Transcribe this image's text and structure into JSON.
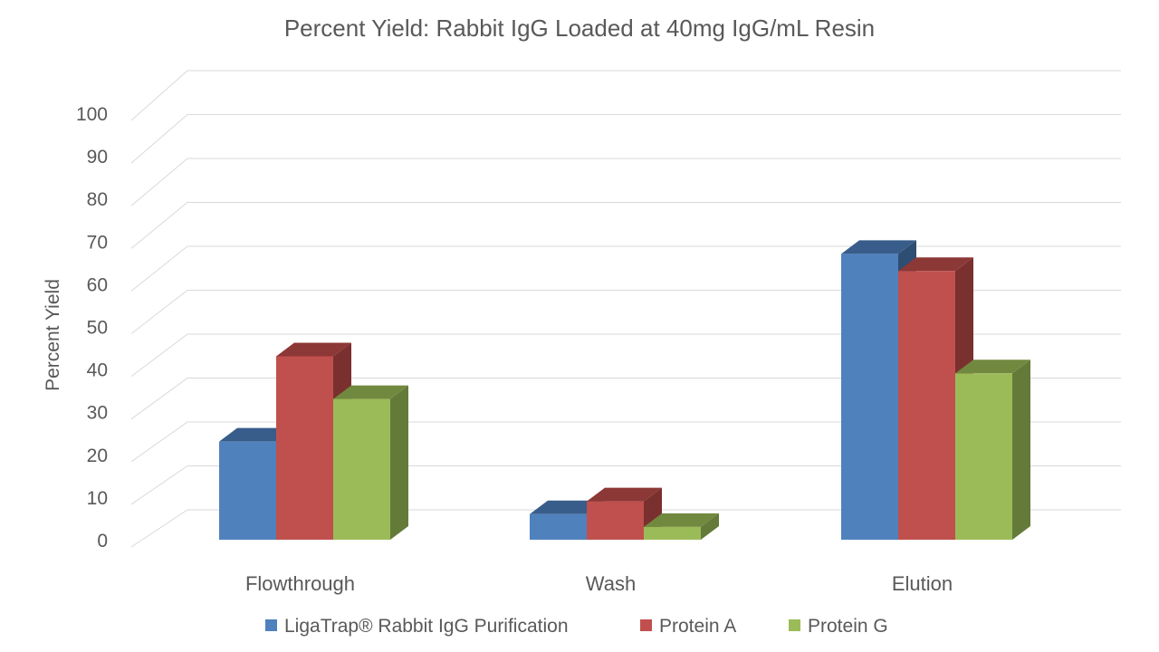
{
  "chart_data": {
    "type": "bar",
    "style": "3d-clustered-column",
    "title": "Percent Yield: Rabbit IgG Loaded at 40mg IgG/mL Resin",
    "xlabel": "",
    "ylabel": "Percent Yield",
    "ylim": [
      0,
      100
    ],
    "yticks": [
      0,
      10,
      20,
      30,
      40,
      50,
      60,
      70,
      80,
      90,
      100
    ],
    "categories": [
      "Flowthrough",
      "Wash",
      "Elution"
    ],
    "series": [
      {
        "name": "LigaTrap® Rabbit IgG Purification",
        "values": [
          23,
          6,
          67
        ],
        "color": "#4f81bd",
        "top_color": "#385d8a",
        "side_color": "#2e4d72"
      },
      {
        "name": "Protein A",
        "values": [
          43,
          9,
          63
        ],
        "color": "#c0504d",
        "top_color": "#8c3836",
        "side_color": "#7a302e"
      },
      {
        "name": "Protein G",
        "values": [
          33,
          3,
          39
        ],
        "color": "#9bbb59",
        "top_color": "#71893f",
        "side_color": "#637a38"
      }
    ],
    "grid": true,
    "legend_position": "bottom"
  }
}
